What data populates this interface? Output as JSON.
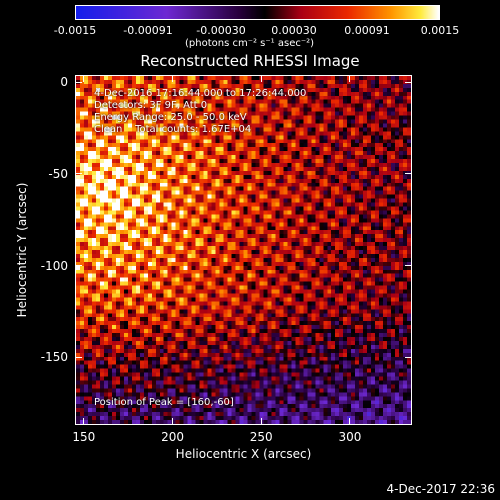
{
  "colorbar": {
    "tick_labels": [
      "-0.0015",
      "-0.00091",
      "-0.00030",
      "0.00030",
      "0.00091",
      "0.0015"
    ],
    "units": "(photons cm⁻² s⁻¹ asec⁻²)"
  },
  "chart_data": {
    "type": "heatmap",
    "title": "Reconstructed RHESSI Image",
    "xlabel": "Heliocentric X (arcsec)",
    "ylabel": "Heliocentric Y (arcsec)",
    "xlim": [
      145,
      335
    ],
    "ylim": [
      -187,
      4
    ],
    "x_ticks": [
      150,
      200,
      250,
      300
    ],
    "y_ticks": [
      0,
      -50,
      -100,
      -150
    ],
    "colorbar_range": [
      -0.0015,
      0.0015
    ],
    "peak": [
      160,
      -60
    ],
    "annotations": [
      "4-Dec-2016 17:16:44.000 to 17:26:44.000",
      "Detectors: 3F 9F, Att 0",
      "Energy Range: 25.0 - 50.0 keV",
      "Clean    Total counts: 1.67E+04"
    ],
    "peak_label": "Position of Peak = [160,-60]"
  },
  "timestamp": "4-Dec-2017 22:36"
}
